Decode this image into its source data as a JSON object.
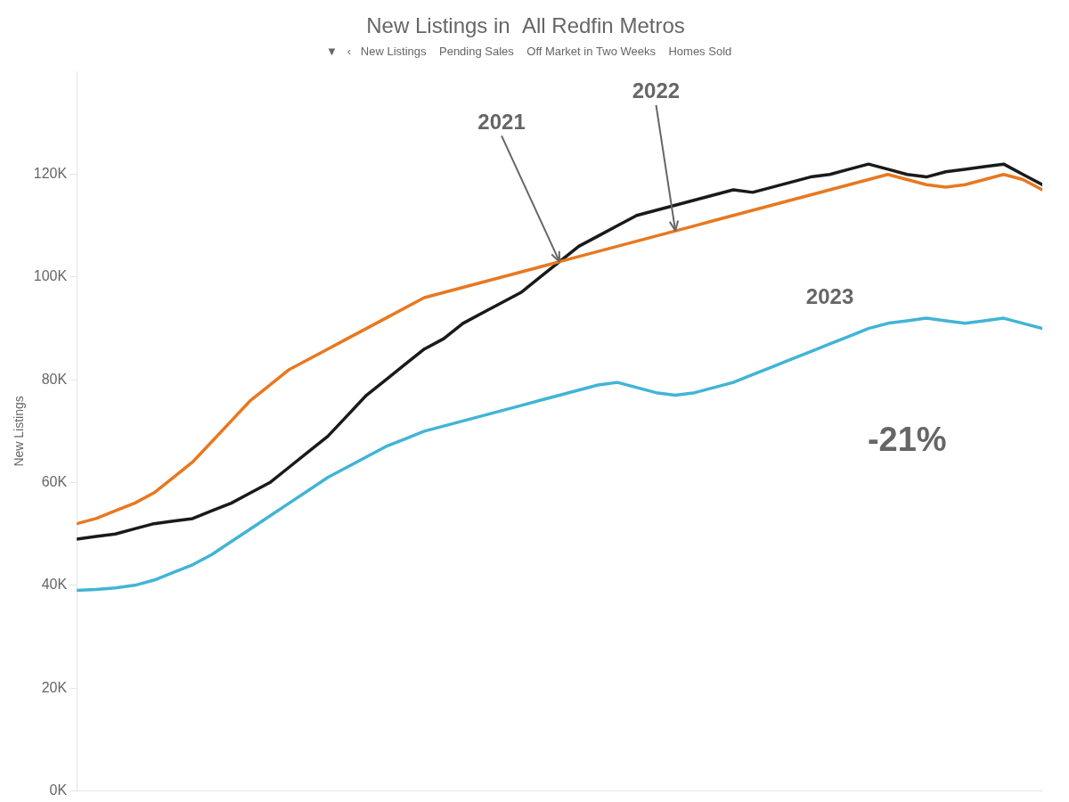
{
  "chart_data": {
    "type": "line",
    "title": "New Listings in  All Redfin Metros",
    "subtitle": "  ▼   ‹   New Listings    Pending Sales    Off Market in Two Weeks    Homes Sold",
    "ylabel": "New Listings",
    "x": [
      0,
      1,
      2,
      3,
      4,
      5,
      6,
      7,
      8,
      9,
      10,
      11,
      12,
      13,
      14,
      15,
      16,
      17,
      18,
      19,
      20,
      21,
      22,
      23,
      24,
      25,
      26,
      27,
      28,
      29,
      30,
      31,
      32,
      33,
      34,
      35,
      36,
      37,
      38,
      39,
      40,
      41,
      42,
      43,
      44,
      45,
      46,
      47,
      48,
      49,
      50
    ],
    "xlim": [
      0,
      50
    ],
    "ylim": [
      0,
      140000
    ],
    "yticks": [
      {
        "value": 0,
        "label": "0K"
      },
      {
        "value": 20000,
        "label": "20K"
      },
      {
        "value": 40000,
        "label": "40K"
      },
      {
        "value": 60000,
        "label": "60K"
      },
      {
        "value": 80000,
        "label": "80K"
      },
      {
        "value": 100000,
        "label": "100K"
      },
      {
        "value": 120000,
        "label": "120K"
      }
    ],
    "tick_labels": "y",
    "grid": false,
    "series": [
      {
        "name": "2022",
        "color": "#e87820",
        "values": [
          52000,
          53000,
          54500,
          56000,
          58000,
          61000,
          64000,
          68000,
          72000,
          76000,
          79000,
          82000,
          84000,
          86000,
          88000,
          90000,
          92000,
          94000,
          96000,
          97000,
          98000,
          99000,
          100000,
          101000,
          102000,
          103000,
          104000,
          105000,
          106000,
          107000,
          108000,
          109000,
          110000,
          111000,
          112000,
          113000,
          114000,
          115000,
          116000,
          117000,
          118000,
          119000,
          120000,
          119000,
          118000,
          117500,
          118000,
          119000,
          120000,
          119000,
          117000
        ]
      },
      {
        "name": "2021",
        "color": "#1a1a1a",
        "values": [
          49000,
          49500,
          50000,
          51000,
          52000,
          52500,
          53000,
          54500,
          56000,
          58000,
          60000,
          63000,
          66000,
          69000,
          73000,
          77000,
          80000,
          83000,
          86000,
          88000,
          91000,
          93000,
          95000,
          97000,
          100000,
          103000,
          106000,
          108000,
          110000,
          112000,
          113000,
          114000,
          115000,
          116000,
          117000,
          116500,
          117500,
          118500,
          119500,
          120000,
          121000,
          122000,
          121000,
          120000,
          119500,
          120500,
          121000,
          121500,
          122000,
          120000,
          118000
        ]
      },
      {
        "name": "2023",
        "color": "#42b4d6",
        "values": [
          39000,
          39200,
          39500,
          40000,
          41000,
          42500,
          44000,
          46000,
          48500,
          51000,
          53500,
          56000,
          58500,
          61000,
          63000,
          65000,
          67000,
          68500,
          70000,
          71000,
          72000,
          73000,
          74000,
          75000,
          76000,
          77000,
          78000,
          79000,
          79500,
          78500,
          77500,
          77000,
          77500,
          78500,
          79500,
          81000,
          82500,
          84000,
          85500,
          87000,
          88500,
          90000,
          91000,
          91500,
          92000,
          91500,
          91000,
          91500,
          92000,
          91000,
          90000
        ]
      }
    ],
    "annotations": [
      {
        "text": "2021",
        "x": 22,
        "y": 130000,
        "arrow_to": {
          "x": 25,
          "y": 103000
        }
      },
      {
        "text": "2022",
        "x": 30,
        "y": 136000,
        "arrow_to": {
          "x": 31,
          "y": 109000
        }
      },
      {
        "text": "2023",
        "x": 39,
        "y": 96000
      },
      {
        "text": "-21%",
        "x": 43,
        "y": 68000
      }
    ]
  }
}
